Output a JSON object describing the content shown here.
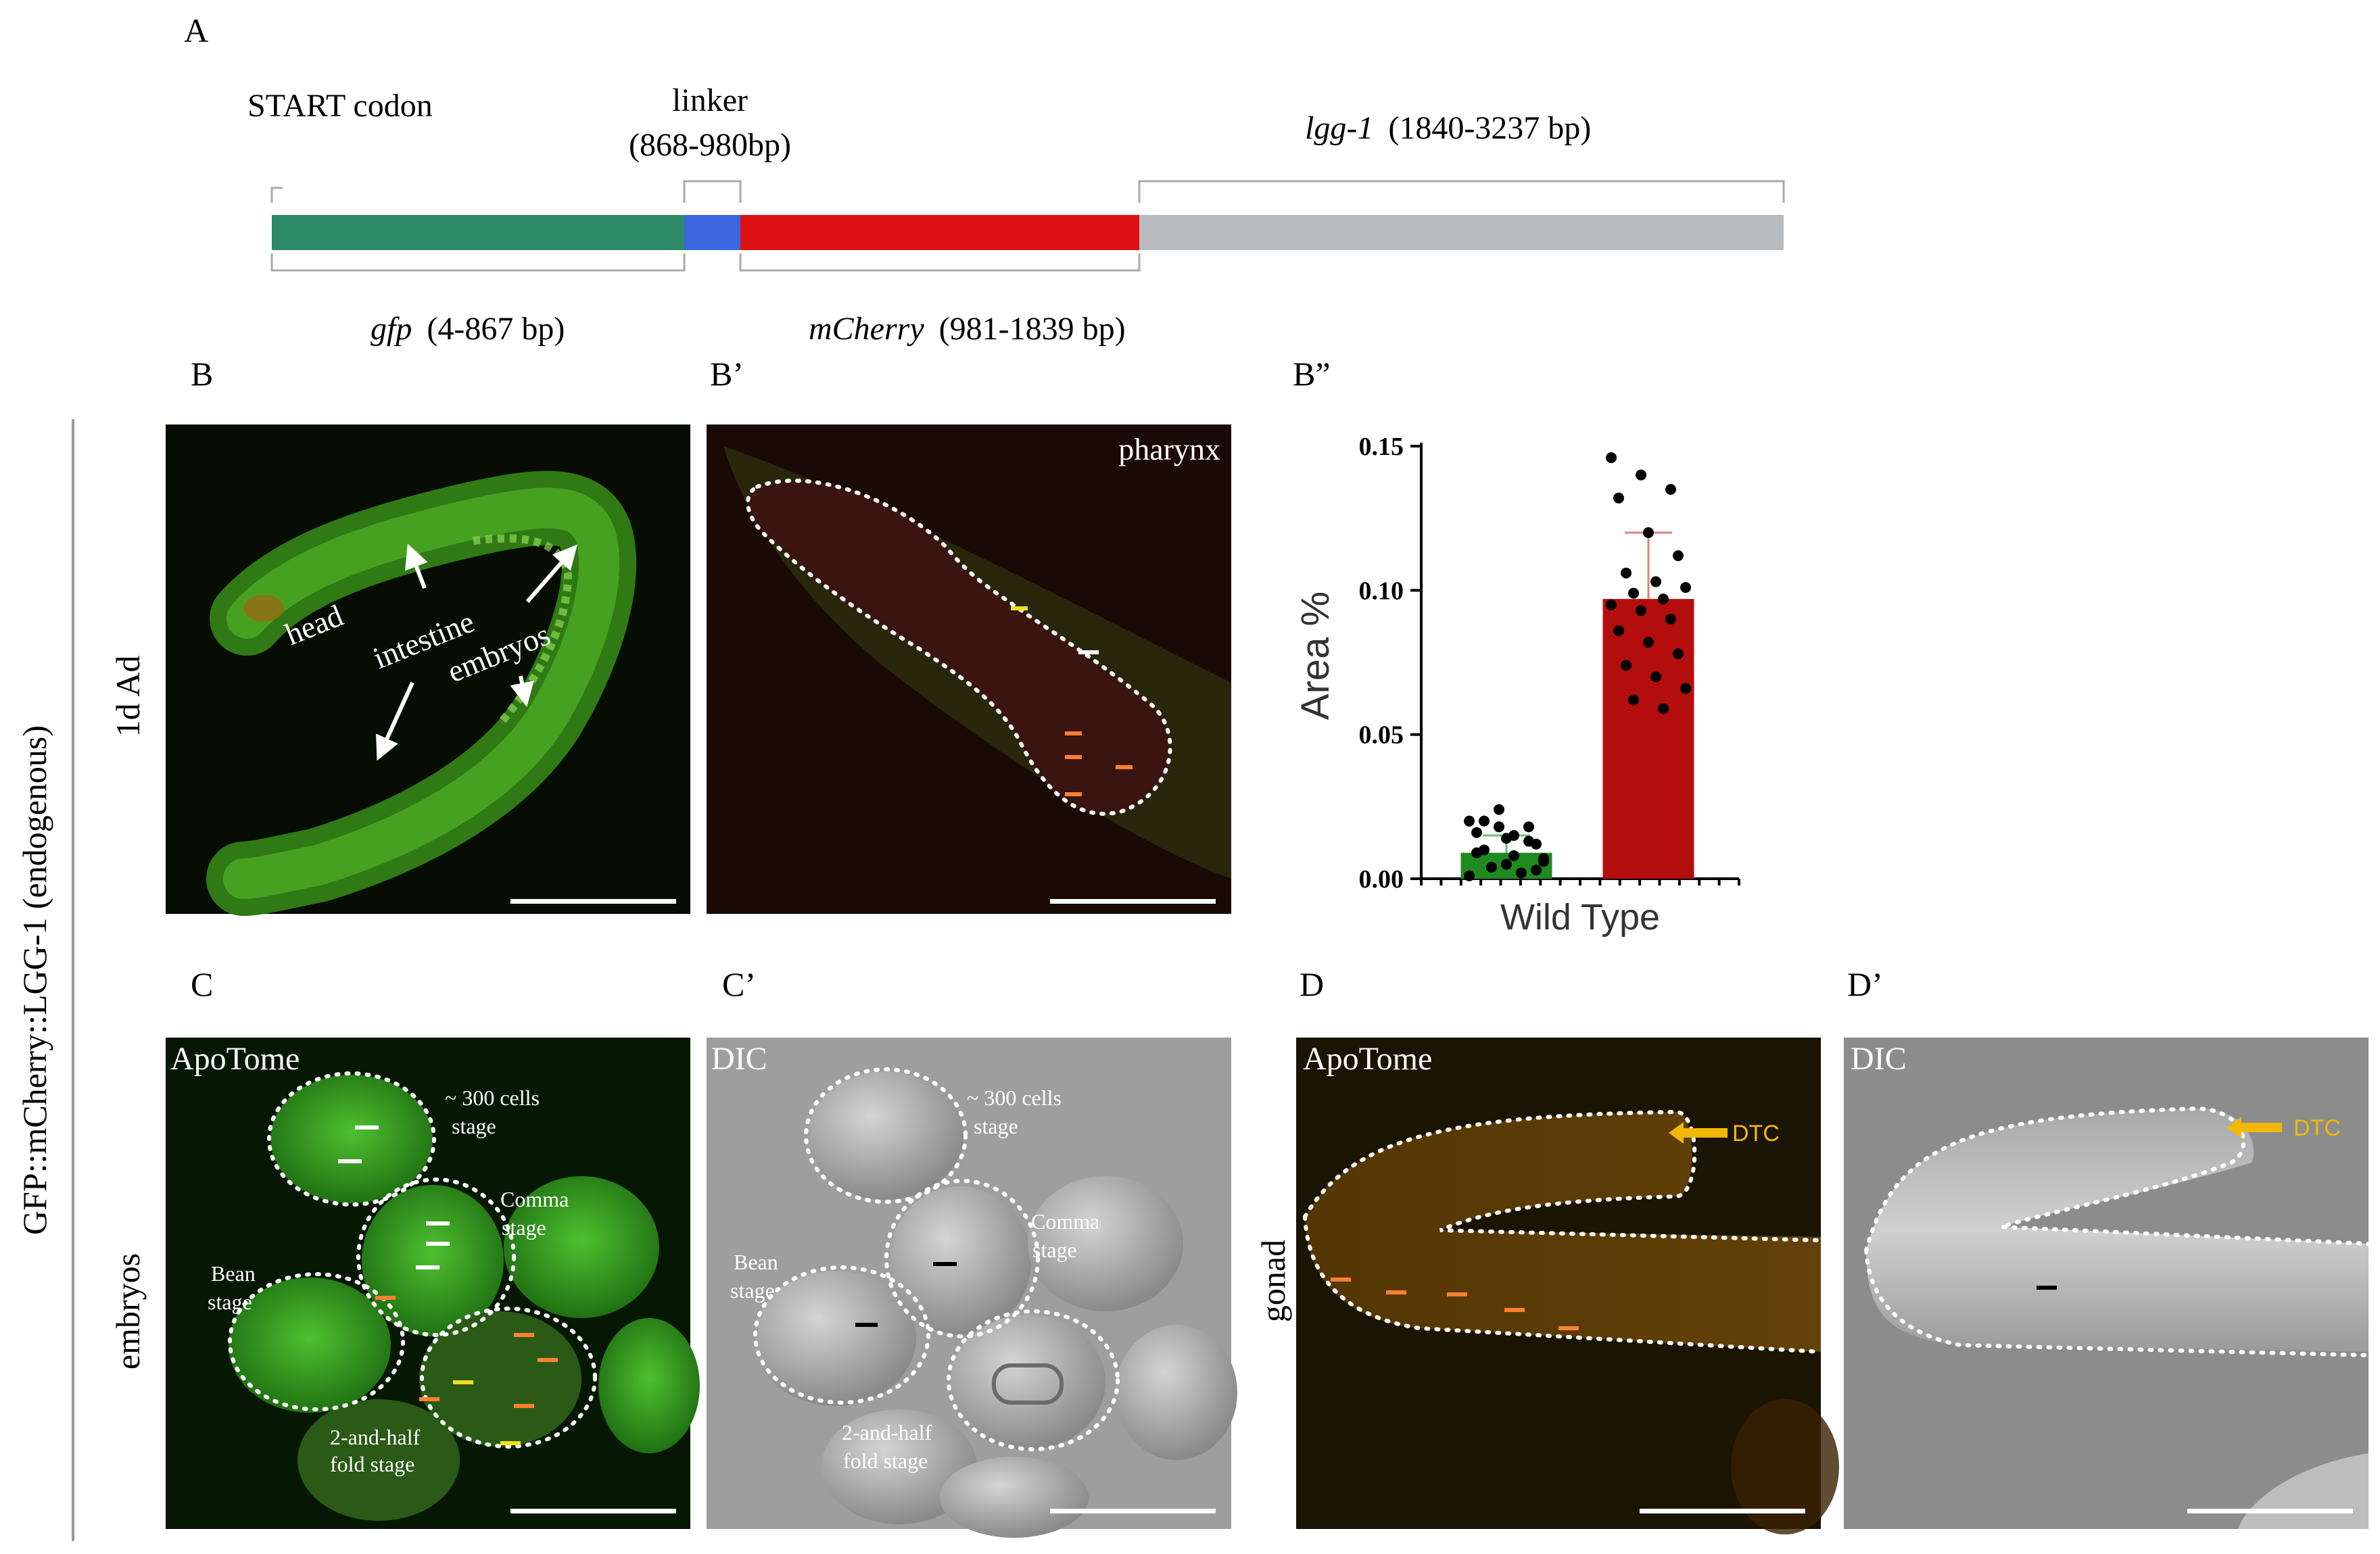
{
  "panel_letters": {
    "A": "A",
    "B": "B",
    "B1": "B’",
    "B2": "B”",
    "C": "C",
    "C1": "C’",
    "D": "D",
    "D1": "D’"
  },
  "construct": {
    "start_codon": "START codon",
    "linker": "linker",
    "linker_range": "(868-980bp)",
    "lgg1_name": "lgg-1",
    "lgg1_range": "(1840-3237 bp)",
    "gfp_name": "gfp",
    "gfp_range": "(4-867 bp)",
    "mcherry_name": "mCherry",
    "mcherry_range": "(981-1839 bp)",
    "colors": {
      "gfp": "#2e8b6a",
      "linker": "#3a66e0",
      "mcherry": "#dd1111",
      "lgg1": "#b8bcbf"
    }
  },
  "side_labels": {
    "construct_name": "GFP::mCherry::LGG-1 (endogenous)",
    "row1": "1d Ad",
    "row2": "embryos",
    "row3": "gonad"
  },
  "panel_B": {
    "head": "head",
    "intestine": "intestine",
    "embryos": "embryos"
  },
  "panel_B1": {
    "pharynx": "pharynx"
  },
  "panel_C": {
    "mode": "ApoTome",
    "s300": "~ 300 cells",
    "stage": "stage",
    "comma": "Comma",
    "bean": "Bean",
    "two_half": "2-and-half",
    "fold_stage": "fold stage"
  },
  "panel_C1": {
    "mode": "DIC"
  },
  "panel_D": {
    "mode": "ApoTome",
    "dtc": "DTC"
  },
  "panel_D1": {
    "mode": "DIC",
    "dtc": "DTC"
  },
  "chart_data": {
    "type": "bar",
    "ylabel": "Area %",
    "xlabel": "Wild Type",
    "ylim": [
      0,
      0.15
    ],
    "yticks": [
      "0.00",
      "0.05",
      "0.10",
      "0.15"
    ],
    "bars": [
      {
        "color": "#1f8a1f",
        "value": 0.009,
        "error": 0.006
      },
      {
        "color": "#b30d0d",
        "value": 0.097,
        "error": 0.023
      }
    ],
    "points": [
      [
        0.02,
        0.024,
        0.018,
        0.016,
        0.014,
        0.012,
        0.01,
        0.008,
        0.006,
        0.004,
        0.002,
        0.001,
        0.018,
        0.013,
        0.009,
        0.005,
        0.003,
        0.02,
        0.015,
        0.007
      ],
      [
        0.146,
        0.14,
        0.135,
        0.132,
        0.12,
        0.112,
        0.106,
        0.103,
        0.101,
        0.099,
        0.097,
        0.095,
        0.093,
        0.09,
        0.086,
        0.082,
        0.078,
        0.074,
        0.07,
        0.066,
        0.062,
        0.059
      ]
    ]
  }
}
